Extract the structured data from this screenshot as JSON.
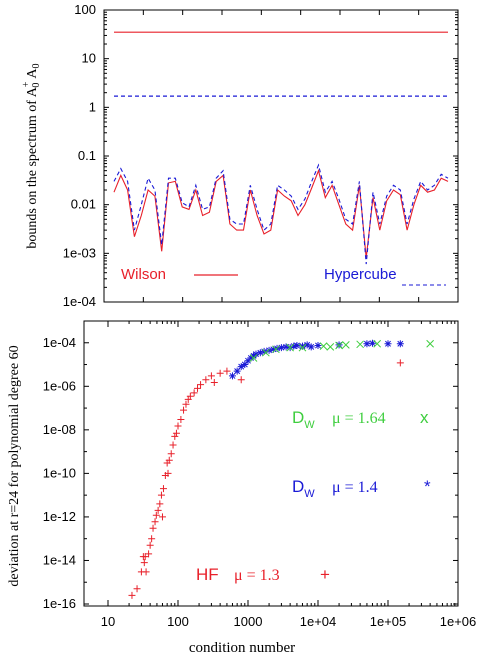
{
  "colors": {
    "red": "#e8202a",
    "blue": "#1a1ad6",
    "green": "#3fce3f"
  },
  "chart_data": [
    {
      "type": "line",
      "ylabel_main": "bounds on the spectrum of A",
      "ylabel_sup": "+",
      "ylabel_sub": "0",
      "ylabel_tail": "A",
      "ylabel_sub2": "0",
      "yscale": "log",
      "ylim": [
        0.0001,
        100
      ],
      "yticks": [
        "1e-04",
        "1e-03",
        "0.01",
        "0.1",
        "1",
        "10",
        "100"
      ],
      "x": [
        1,
        2,
        3,
        4,
        5,
        6,
        7,
        8,
        9,
        10,
        11,
        12,
        13,
        14,
        15,
        16,
        17,
        18,
        19,
        20,
        21,
        22,
        23,
        24,
        25,
        26,
        27,
        28,
        29,
        30,
        31,
        32,
        33,
        34,
        35,
        36,
        37,
        38,
        39,
        40,
        41,
        42,
        43,
        44,
        45,
        46,
        47,
        48,
        49,
        50
      ],
      "series": [
        {
          "name": "Wilson",
          "style": "solid",
          "upper": 35,
          "lower": [
            0.018,
            0.04,
            0.02,
            0.0022,
            0.006,
            0.02,
            0.015,
            0.0011,
            0.028,
            0.03,
            0.009,
            0.008,
            0.02,
            0.006,
            0.007,
            0.03,
            0.04,
            0.004,
            0.003,
            0.003,
            0.02,
            0.006,
            0.0025,
            0.003,
            0.02,
            0.015,
            0.012,
            0.006,
            0.01,
            0.022,
            0.05,
            0.014,
            0.025,
            0.01,
            0.004,
            0.003,
            0.025,
            0.0008,
            0.014,
            0.003,
            0.012,
            0.02,
            0.016,
            0.003,
            0.01,
            0.025,
            0.018,
            0.02,
            0.035,
            0.03
          ]
        },
        {
          "name": "Hypercube",
          "style": "dashed",
          "upper": 1.7,
          "lower": [
            0.03,
            0.055,
            0.03,
            0.003,
            0.01,
            0.035,
            0.02,
            0.0015,
            0.035,
            0.035,
            0.011,
            0.009,
            0.025,
            0.008,
            0.009,
            0.035,
            0.05,
            0.005,
            0.004,
            0.004,
            0.025,
            0.008,
            0.003,
            0.004,
            0.025,
            0.02,
            0.015,
            0.008,
            0.013,
            0.03,
            0.065,
            0.018,
            0.03,
            0.013,
            0.005,
            0.004,
            0.03,
            0.0006,
            0.018,
            0.004,
            0.015,
            0.025,
            0.02,
            0.004,
            0.013,
            0.03,
            0.02,
            0.025,
            0.042,
            0.035
          ]
        }
      ]
    },
    {
      "type": "scatter",
      "ylabel": "deviation at r=24 for polynomial degree 60",
      "xlabel": "condition number",
      "xscale": "log",
      "yscale": "log",
      "xlim": [
        10,
        1000000
      ],
      "ylim": [
        1e-16,
        0.001
      ],
      "xticks": [
        "10",
        "100",
        "1000",
        "1e+04",
        "1e+05",
        "1e+06"
      ],
      "yticks": [
        "1e-16",
        "1e-14",
        "1e-12",
        "1e-10",
        "1e-08",
        "1e-06",
        "1e-04"
      ],
      "series": [
        {
          "name": "HF",
          "mu": "μ = 1.3",
          "marker": "+",
          "points": [
            [
              22,
              2.5e-16
            ],
            [
              26,
              5e-16
            ],
            [
              30,
              3e-15
            ],
            [
              32,
              1.5e-14
            ],
            [
              33,
              8e-15
            ],
            [
              34,
              1.5e-14
            ],
            [
              35,
              3e-15
            ],
            [
              38,
              2e-14
            ],
            [
              40,
              5e-14
            ],
            [
              42,
              1e-13
            ],
            [
              44,
              3e-13
            ],
            [
              47,
              6e-13
            ],
            [
              49,
              1.2e-12
            ],
            [
              52,
              2e-12
            ],
            [
              55,
              4e-12
            ],
            [
              58,
              1e-11
            ],
            [
              60,
              1e-12
            ],
            [
              62,
              2e-11
            ],
            [
              66,
              8e-11
            ],
            [
              70,
              3e-10
            ],
            [
              72,
              1e-10
            ],
            [
              75,
              4e-10
            ],
            [
              80,
              8e-10
            ],
            [
              85,
              2e-09
            ],
            [
              90,
              5e-09
            ],
            [
              95,
              7e-09
            ],
            [
              100,
              1.5e-08
            ],
            [
              110,
              3e-08
            ],
            [
              120,
              8e-08
            ],
            [
              130,
              1.5e-07
            ],
            [
              140,
              2.5e-07
            ],
            [
              150,
              3.5e-07
            ],
            [
              170,
              5e-07
            ],
            [
              190,
              8e-07
            ],
            [
              210,
              1.2e-06
            ],
            [
              250,
              2e-06
            ],
            [
              300,
              3e-06
            ],
            [
              330,
              1.5e-06
            ],
            [
              400,
              4e-06
            ],
            [
              500,
              5e-06
            ],
            [
              800,
              2e-06
            ],
            [
              150000,
              1.2e-05
            ]
          ]
        },
        {
          "name": "Dw",
          "mu": "μ = 1.4",
          "marker": "*",
          "points": [
            [
              600,
              3e-06
            ],
            [
              700,
              5e-06
            ],
            [
              800,
              8e-06
            ],
            [
              900,
              1e-05
            ],
            [
              1000,
              1.5e-05
            ],
            [
              1100,
              2e-05
            ],
            [
              1200,
              2.5e-05
            ],
            [
              1300,
              3e-05
            ],
            [
              1500,
              3.5e-05
            ],
            [
              1700,
              4e-05
            ],
            [
              2000,
              4.5e-05
            ],
            [
              2300,
              5e-05
            ],
            [
              2600,
              5.5e-05
            ],
            [
              3000,
              6e-05
            ],
            [
              3500,
              6.5e-05
            ],
            [
              4000,
              6e-05
            ],
            [
              4500,
              7e-05
            ],
            [
              5000,
              7.5e-05
            ],
            [
              6000,
              7e-05
            ],
            [
              7000,
              8e-05
            ],
            [
              8000,
              6.5e-05
            ],
            [
              10000,
              7.5e-05
            ],
            [
              20000,
              8e-05
            ],
            [
              50000,
              9e-05
            ],
            [
              60000,
              9.5e-05
            ],
            [
              100000,
              9e-05
            ],
            [
              150000,
              9e-05
            ]
          ]
        },
        {
          "name": "Dw",
          "mu": "μ = 1.64",
          "marker": "x",
          "points": [
            [
              1200,
              2e-05
            ],
            [
              1800,
              3.5e-05
            ],
            [
              2500,
              5e-05
            ],
            [
              4000,
              6e-05
            ],
            [
              6000,
              6e-05
            ],
            [
              12000,
              7e-05
            ],
            [
              15000,
              6.5e-05
            ],
            [
              20000,
              7.5e-05
            ],
            [
              25000,
              8e-05
            ],
            [
              40000,
              8.5e-05
            ],
            [
              70000,
              9e-05
            ],
            [
              400000,
              9e-05
            ]
          ]
        }
      ]
    }
  ],
  "legend": {
    "top_wilson": "Wilson",
    "top_hypercube": "Hypercube",
    "green_d": "D",
    "green_sub": "W",
    "green_mu": "μ = 1.64",
    "green_marker": "x",
    "blue_d": "D",
    "blue_sub": "W",
    "blue_mu": "μ = 1.4",
    "blue_marker": "*",
    "red_name": "HF",
    "red_mu": "μ = 1.3",
    "red_marker": "+"
  }
}
